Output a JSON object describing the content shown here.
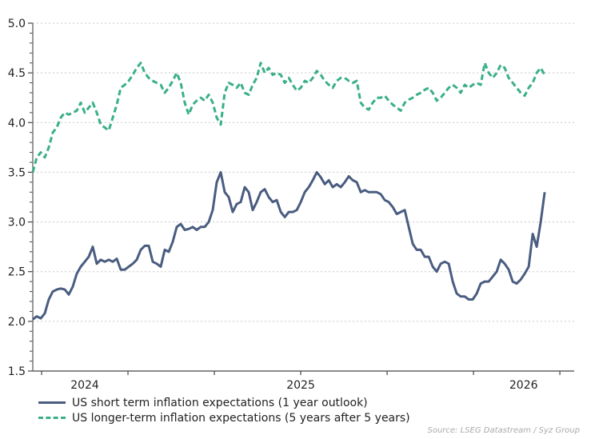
{
  "chart_data": {
    "type": "line",
    "title": "",
    "xlabel": "",
    "ylabel": "",
    "ylim": [
      1.5,
      5.0
    ],
    "yticks": [
      1.5,
      2.0,
      2.5,
      3.0,
      3.5,
      4.0,
      4.5,
      5.0
    ],
    "ytick_labels": [
      "1.5",
      "2.0",
      "2.5",
      "3.0",
      "3.5",
      "4.0",
      "4.5",
      "5.0"
    ],
    "xlim": [
      2023.449,
      2026.583
    ],
    "xticks": [
      2023.5,
      2024.0,
      2024.5,
      2025.0,
      2025.5,
      2026.0,
      2026.5
    ],
    "xtick_labels": [
      {
        "label": "2024",
        "x": 2023.75
      },
      {
        "label": "2025",
        "x": 2025.0
      },
      {
        "label": "2026",
        "x": 2026.29
      }
    ],
    "grid": "horizontal dotted",
    "legend_placement": "bottom-left",
    "x_start": 2023.449,
    "x_step": 0.02315,
    "series": [
      {
        "name": "US short term inflation expectations (1 year outlook)",
        "color": "#4a5d80",
        "style": "solid",
        "values": [
          2.02,
          2.05,
          2.03,
          2.08,
          2.22,
          2.3,
          2.32,
          2.33,
          2.32,
          2.27,
          2.35,
          2.48,
          2.55,
          2.6,
          2.65,
          2.75,
          2.58,
          2.62,
          2.6,
          2.62,
          2.6,
          2.63,
          2.52,
          2.52,
          2.55,
          2.58,
          2.62,
          2.72,
          2.76,
          2.76,
          2.6,
          2.58,
          2.55,
          2.72,
          2.7,
          2.8,
          2.95,
          2.98,
          2.92,
          2.93,
          2.95,
          2.92,
          2.95,
          2.95,
          3.0,
          3.12,
          3.4,
          3.5,
          3.3,
          3.25,
          3.1,
          3.18,
          3.2,
          3.35,
          3.3,
          3.12,
          3.2,
          3.3,
          3.33,
          3.25,
          3.2,
          3.22,
          3.1,
          3.05,
          3.1,
          3.1,
          3.12,
          3.2,
          3.3,
          3.35,
          3.42,
          3.5,
          3.45,
          3.38,
          3.42,
          3.35,
          3.38,
          3.35,
          3.4,
          3.46,
          3.42,
          3.4,
          3.3,
          3.32,
          3.3,
          3.3,
          3.3,
          3.28,
          3.22,
          3.2,
          3.15,
          3.08,
          3.1,
          3.12,
          2.95,
          2.78,
          2.72,
          2.72,
          2.65,
          2.65,
          2.55,
          2.5,
          2.58,
          2.6,
          2.58,
          2.4,
          2.28,
          2.25,
          2.25,
          2.22,
          2.22,
          2.28,
          2.38,
          2.4,
          2.4,
          2.45,
          2.5,
          2.62,
          2.58,
          2.52,
          2.4,
          2.38,
          2.42,
          2.48,
          2.55,
          2.88,
          2.75,
          3.0,
          3.3
        ]
      },
      {
        "name": "US longer-term inflation expectations (5 years after 5 years)",
        "color": "#3aaf8a",
        "style": "dashed",
        "values": [
          3.5,
          3.65,
          3.7,
          3.65,
          3.75,
          3.9,
          3.95,
          4.05,
          4.1,
          4.08,
          4.1,
          4.12,
          4.2,
          4.1,
          4.15,
          4.2,
          4.1,
          3.98,
          3.95,
          3.92,
          4.05,
          4.18,
          4.35,
          4.38,
          4.42,
          4.48,
          4.55,
          4.6,
          4.5,
          4.45,
          4.42,
          4.4,
          4.38,
          4.3,
          4.35,
          4.42,
          4.5,
          4.4,
          4.2,
          4.08,
          4.18,
          4.22,
          4.25,
          4.22,
          4.28,
          4.2,
          4.05,
          3.98,
          4.3,
          4.4,
          4.38,
          4.35,
          4.4,
          4.3,
          4.28,
          4.38,
          4.45,
          4.6,
          4.5,
          4.55,
          4.48,
          4.5,
          4.48,
          4.4,
          4.45,
          4.38,
          4.32,
          4.35,
          4.42,
          4.4,
          4.45,
          4.52,
          4.48,
          4.42,
          4.38,
          4.35,
          4.42,
          4.45,
          4.45,
          4.42,
          4.4,
          4.42,
          4.2,
          4.15,
          4.13,
          4.2,
          4.25,
          4.25,
          4.27,
          4.22,
          4.18,
          4.15,
          4.12,
          4.2,
          4.23,
          4.25,
          4.28,
          4.3,
          4.33,
          4.35,
          4.3,
          4.22,
          4.25,
          4.3,
          4.35,
          4.38,
          4.35,
          4.3,
          4.38,
          4.35,
          4.38,
          4.4,
          4.38,
          4.6,
          4.5,
          4.45,
          4.5,
          4.58,
          4.55,
          4.45,
          4.4,
          4.35,
          4.3,
          4.27,
          4.35,
          4.4,
          4.5,
          4.55,
          4.48
        ]
      }
    ],
    "source": "Source: LSEG Datastream / Syz Group"
  }
}
